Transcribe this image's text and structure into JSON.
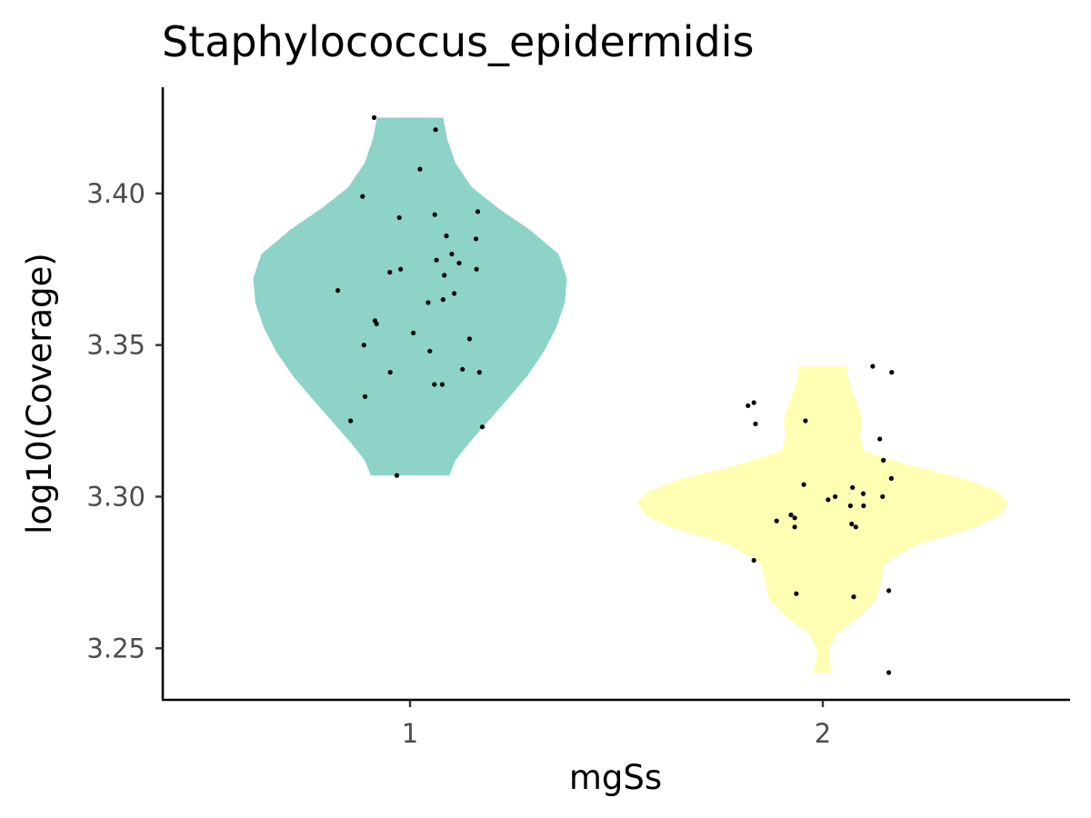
{
  "chart_data": {
    "type": "violin",
    "title": "Staphylococcus_epidermidis",
    "xlabel": "mgSs",
    "ylabel": "log10(Coverage)",
    "categories": [
      "1",
      "2"
    ],
    "ylim": [
      3.233,
      3.435
    ],
    "yticks": [
      "3.25",
      "3.30",
      "3.35",
      "3.40"
    ],
    "grid": false,
    "legend": "none",
    "series": [
      {
        "category": "1",
        "color": "#8DD3C7",
        "range": [
          3.307,
          3.425
        ],
        "density": [
          [
            3.307,
            0.19
          ],
          [
            3.312,
            0.22
          ],
          [
            3.318,
            0.29
          ],
          [
            3.325,
            0.38
          ],
          [
            3.332,
            0.47
          ],
          [
            3.34,
            0.57
          ],
          [
            3.348,
            0.65
          ],
          [
            3.356,
            0.71
          ],
          [
            3.364,
            0.75
          ],
          [
            3.372,
            0.76
          ],
          [
            3.38,
            0.72
          ],
          [
            3.388,
            0.58
          ],
          [
            3.395,
            0.43
          ],
          [
            3.402,
            0.3
          ],
          [
            3.41,
            0.22
          ],
          [
            3.418,
            0.18
          ],
          [
            3.425,
            0.16
          ]
        ],
        "points": [
          [
            -0.087,
            3.425
          ],
          [
            0.062,
            3.421
          ],
          [
            0.024,
            3.408
          ],
          [
            -0.115,
            3.399
          ],
          [
            0.164,
            3.394
          ],
          [
            0.06,
            3.393
          ],
          [
            -0.026,
            3.392
          ],
          [
            0.088,
            3.386
          ],
          [
            0.16,
            3.385
          ],
          [
            0.101,
            3.38
          ],
          [
            0.064,
            3.378
          ],
          [
            0.119,
            3.377
          ],
          [
            -0.023,
            3.375
          ],
          [
            0.161,
            3.375
          ],
          [
            -0.049,
            3.374
          ],
          [
            0.083,
            3.373
          ],
          [
            -0.175,
            3.368
          ],
          [
            0.107,
            3.367
          ],
          [
            0.08,
            3.365
          ],
          [
            0.044,
            3.364
          ],
          [
            -0.085,
            3.358
          ],
          [
            -0.081,
            3.357
          ],
          [
            0.008,
            3.354
          ],
          [
            0.144,
            3.352
          ],
          [
            -0.112,
            3.35
          ],
          [
            0.048,
            3.348
          ],
          [
            -0.048,
            3.341
          ],
          [
            0.127,
            3.342
          ],
          [
            0.168,
            3.341
          ],
          [
            0.059,
            3.337
          ],
          [
            0.078,
            3.337
          ],
          [
            -0.109,
            3.333
          ],
          [
            -0.144,
            3.325
          ],
          [
            0.175,
            3.323
          ],
          [
            -0.032,
            3.307
          ]
        ]
      },
      {
        "category": "2",
        "color": "#FFFFB3",
        "range": [
          3.242,
          3.343
        ],
        "density": [
          [
            3.242,
            0.05
          ],
          [
            3.246,
            0.03
          ],
          [
            3.25,
            0.03
          ],
          [
            3.255,
            0.07
          ],
          [
            3.26,
            0.17
          ],
          [
            3.266,
            0.26
          ],
          [
            3.272,
            0.28
          ],
          [
            3.278,
            0.3
          ],
          [
            3.284,
            0.45
          ],
          [
            3.29,
            0.74
          ],
          [
            3.294,
            0.86
          ],
          [
            3.298,
            0.9
          ],
          [
            3.302,
            0.84
          ],
          [
            3.306,
            0.68
          ],
          [
            3.31,
            0.44
          ],
          [
            3.315,
            0.2
          ],
          [
            3.32,
            0.18
          ],
          [
            3.325,
            0.19
          ],
          [
            3.33,
            0.17
          ],
          [
            3.335,
            0.14
          ],
          [
            3.34,
            0.12
          ],
          [
            3.343,
            0.12
          ]
        ],
        "points": [
          [
            0.121,
            3.343
          ],
          [
            0.167,
            3.341
          ],
          [
            -0.181,
            3.33
          ],
          [
            -0.167,
            3.331
          ],
          [
            -0.163,
            3.324
          ],
          [
            -0.042,
            3.325
          ],
          [
            0.138,
            3.319
          ],
          [
            0.147,
            3.312
          ],
          [
            0.166,
            3.306
          ],
          [
            -0.046,
            3.304
          ],
          [
            0.072,
            3.303
          ],
          [
            0.098,
            3.301
          ],
          [
            0.145,
            3.3
          ],
          [
            0.03,
            3.3
          ],
          [
            0.013,
            3.299
          ],
          [
            0.067,
            3.297
          ],
          [
            0.099,
            3.297
          ],
          [
            -0.077,
            3.294
          ],
          [
            -0.068,
            3.293
          ],
          [
            -0.112,
            3.292
          ],
          [
            0.07,
            3.291
          ],
          [
            0.08,
            3.29
          ],
          [
            -0.068,
            3.29
          ],
          [
            -0.167,
            3.279
          ],
          [
            -0.064,
            3.268
          ],
          [
            0.075,
            3.267
          ],
          [
            0.16,
            3.269
          ],
          [
            0.16,
            3.242
          ]
        ]
      }
    ]
  }
}
